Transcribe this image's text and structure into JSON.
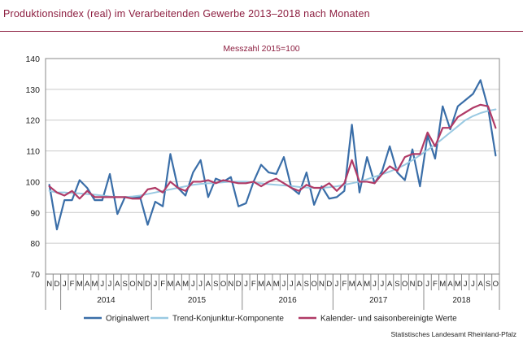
{
  "title": "Produktionsindex (real) im Verarbeitenden Gewerbe 2013–2018 nach Monaten",
  "source": "Statistisches Landesamt Rheinland-Pfalz",
  "chart_data": {
    "type": "line",
    "subtitle": "Messzahl 2015=100",
    "ylim": [
      70,
      140
    ],
    "yticks": [
      70,
      80,
      90,
      100,
      110,
      120,
      130,
      140
    ],
    "grid": "horizontal",
    "legend_position": "bottom",
    "month_labels": [
      "N",
      "D",
      "J",
      "F",
      "M",
      "A",
      "M",
      "J",
      "J",
      "A",
      "S",
      "O",
      "N",
      "D",
      "J",
      "F",
      "M",
      "A",
      "M",
      "J",
      "J",
      "A",
      "S",
      "O",
      "N",
      "D",
      "J",
      "F",
      "M",
      "A",
      "M",
      "J",
      "J",
      "A",
      "S",
      "O",
      "N",
      "D",
      "J",
      "F",
      "M",
      "A",
      "M",
      "J",
      "J",
      "A",
      "S",
      "O",
      "N",
      "D",
      "J",
      "F",
      "M",
      "A",
      "M",
      "J",
      "J",
      "A",
      "S",
      "O"
    ],
    "year_labels": [
      {
        "label": "2014",
        "start": 2,
        "end": 13
      },
      {
        "label": "2015",
        "start": 14,
        "end": 25
      },
      {
        "label": "2016",
        "start": 26,
        "end": 37
      },
      {
        "label": "2017",
        "start": 38,
        "end": 49
      },
      {
        "label": "2018",
        "start": 50,
        "end": 59
      }
    ],
    "series": [
      {
        "name": "Originalwert",
        "color": "#3a6ea8",
        "values": [
          99,
          84.5,
          94,
          94,
          100.5,
          98,
          94,
          94,
          102.5,
          89.5,
          95,
          95,
          95,
          86,
          93.5,
          92,
          109,
          98,
          95.5,
          103,
          107,
          95,
          101,
          100,
          101.5,
          92,
          93,
          100,
          105.5,
          103,
          102.5,
          108,
          98,
          96,
          103,
          92.5,
          98.5,
          94.5,
          95,
          97,
          118.5,
          96.5,
          108,
          99.5,
          103.5,
          111.5,
          103,
          100.5,
          110.5,
          98.5,
          115,
          107.5,
          124.5,
          117,
          124.5,
          126.5,
          128.5,
          133,
          124,
          108.5
        ]
      },
      {
        "name": "Trend-Konjunktur-Komponente",
        "color": "#99c9e2",
        "values": [
          97,
          96.5,
          96.5,
          96.3,
          96.2,
          96,
          95.8,
          95.5,
          95.2,
          95,
          95,
          95.2,
          95.5,
          96,
          96.5,
          97,
          97.5,
          98,
          98.5,
          99,
          99.3,
          99.5,
          99.6,
          99.8,
          100,
          100,
          100,
          99.8,
          99.5,
          99.2,
          99,
          98.8,
          98.6,
          98.3,
          98.1,
          98,
          98,
          98.2,
          98.5,
          99,
          99.5,
          100,
          100.8,
          101.6,
          102.4,
          103.3,
          104.3,
          105.5,
          107,
          108.6,
          110.3,
          112,
          114,
          116,
          118,
          120,
          121.3,
          122.3,
          123,
          123.5
        ]
      },
      {
        "name": "Kalender- und saisonbereinigte Werte",
        "color": "#b03a66",
        "values": [
          98.5,
          96.5,
          95.5,
          97,
          94.5,
          97,
          95,
          95,
          95,
          95,
          95,
          94.5,
          94.5,
          97.5,
          98,
          96.5,
          100,
          98,
          97,
          100,
          100,
          100.5,
          99.5,
          100.5,
          100,
          99.5,
          99.5,
          100,
          98.5,
          100,
          101,
          99.5,
          98,
          97,
          99,
          98,
          98,
          99.5,
          97,
          99.5,
          107,
          100,
          100,
          99.5,
          102.5,
          105,
          103.5,
          108,
          109,
          109,
          116,
          111.5,
          117.5,
          117.5,
          121,
          122.5,
          124,
          125,
          124.5,
          117.5
        ]
      }
    ]
  }
}
